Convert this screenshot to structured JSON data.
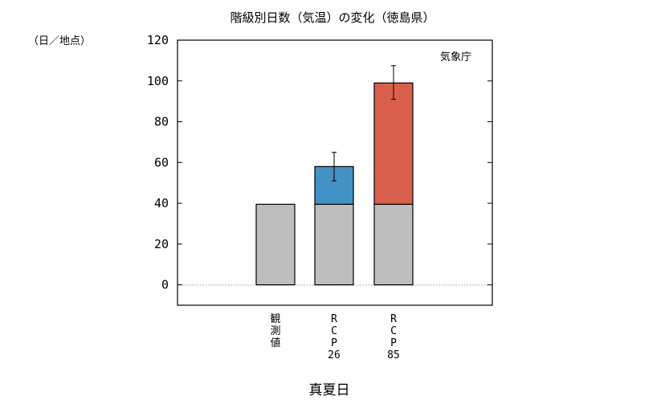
{
  "chart_data": {
    "type": "bar",
    "title": "階級別日数（気温）の変化（徳島県）",
    "ylabel": "（日／地点）",
    "xlabel": "真夏日",
    "source": "気象庁",
    "ylim": [
      -10,
      120
    ],
    "yticks": [
      0,
      20,
      40,
      60,
      80,
      100,
      120
    ],
    "categories": [
      "観測値",
      "RCP26",
      "RCP85"
    ],
    "category_labels": [
      [
        "観",
        "測",
        "値"
      ],
      [
        "R",
        "C",
        "P",
        "26"
      ],
      [
        "R",
        "C",
        "P",
        "85"
      ]
    ],
    "series": [
      {
        "values": [
          39.5,
          39.5,
          39.5
        ],
        "color": "#bebebe"
      },
      {
        "values": [
          null,
          18.5,
          59.5
        ],
        "color": "#4292c6",
        "colors": [
          null,
          "#4292c6",
          "#d9604c"
        ],
        "error_low": [
          null,
          51,
          91
        ],
        "error_high": [
          null,
          65,
          107.5
        ]
      }
    ],
    "grid": false,
    "zero_line": true,
    "legend": "none"
  }
}
